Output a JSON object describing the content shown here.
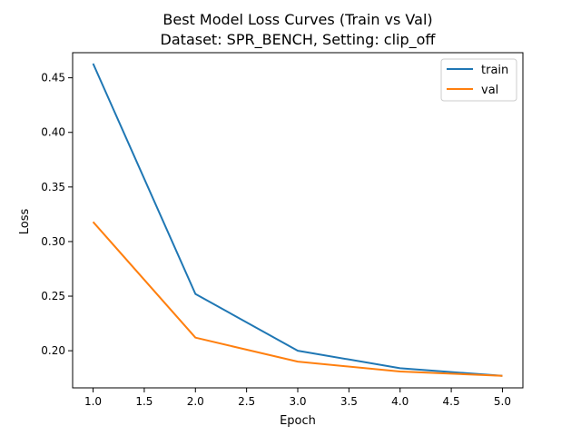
{
  "chart_data": {
    "type": "line",
    "title": "Best Model Loss Curves (Train vs Val)",
    "subtitle": "Dataset: SPR_BENCH, Setting: clip_off",
    "xlabel": "Epoch",
    "ylabel": "Loss",
    "x": [
      1,
      2,
      3,
      4,
      5
    ],
    "xlim": [
      0.8,
      5.2
    ],
    "ylim": [
      0.166,
      0.473
    ],
    "xticks": [
      1.0,
      1.5,
      2.0,
      2.5,
      3.0,
      3.5,
      4.0,
      4.5,
      5.0
    ],
    "xtick_labels": [
      "1.0",
      "1.5",
      "2.0",
      "2.5",
      "3.0",
      "3.5",
      "4.0",
      "4.5",
      "5.0"
    ],
    "yticks": [
      0.2,
      0.25,
      0.3,
      0.35,
      0.4,
      0.45
    ],
    "ytick_labels": [
      "0.20",
      "0.25",
      "0.30",
      "0.35",
      "0.40",
      "0.45"
    ],
    "grid": false,
    "legend_position": "top-right",
    "series": [
      {
        "name": "train",
        "color": "#1f77b4",
        "values": [
          0.463,
          0.252,
          0.2,
          0.184,
          0.177
        ]
      },
      {
        "name": "val",
        "color": "#ff7f0e",
        "values": [
          0.318,
          0.212,
          0.19,
          0.181,
          0.177
        ]
      }
    ]
  }
}
